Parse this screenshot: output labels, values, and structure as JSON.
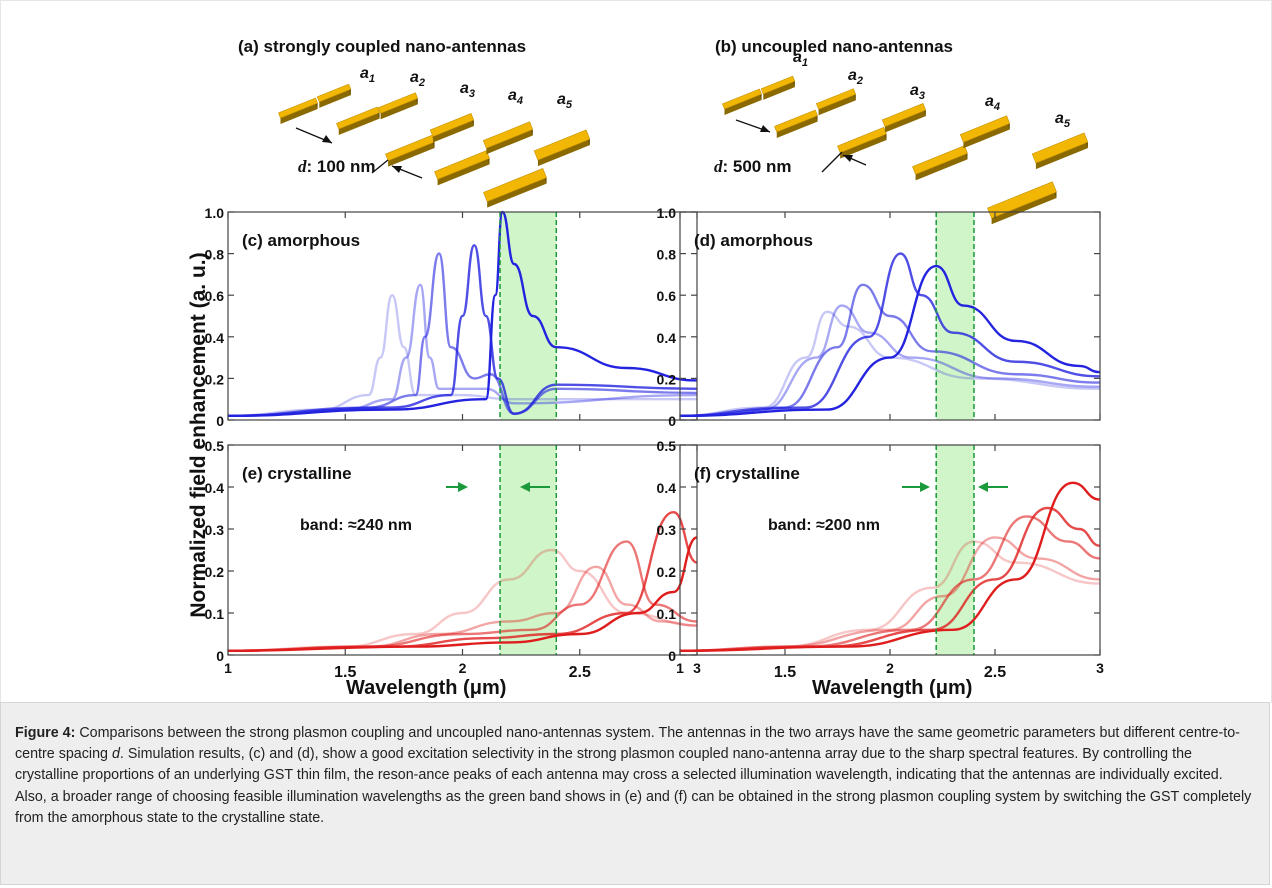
{
  "figure": {
    "panel_a_title": "(a) strongly coupled nano-antennas",
    "panel_b_title": "(b) uncoupled nano-antennas",
    "antenna_labels": [
      "a",
      "a",
      "a",
      "a",
      "a"
    ],
    "antenna_subscripts": [
      "1",
      "2",
      "3",
      "4",
      "5"
    ],
    "spacing_a": {
      "var": "d",
      "text": ": 100 nm"
    },
    "spacing_b": {
      "var": "d",
      "text": ": 500 nm"
    },
    "ylabel": "Normalized field enhancement (a. u.)",
    "xlabel": "Wavelength (μm)",
    "band_c": "band: ≈240 nm",
    "band_d": "band: ≈200 nm",
    "colors": {
      "amorphous": "#2323e0",
      "crystalline": "#e01d1d",
      "band": "#cff5c8",
      "band_line": "#1a9a3a",
      "antenna": "#f2b705"
    }
  },
  "chart_data": [
    {
      "type": "line",
      "title": "(c) amorphous",
      "xlabel": "Wavelength (μm)",
      "ylabel": "Normalized field enhancement (a. u.)",
      "xlim": [
        1,
        3
      ],
      "ylim": [
        0,
        1.0
      ],
      "xticks": [
        "1",
        "1.5",
        "2",
        "2.5",
        "3"
      ],
      "yticks": [
        "0",
        "0.2",
        "0.4",
        "0.6",
        "0.8",
        "1.0"
      ],
      "band": [
        2.16,
        2.4
      ],
      "series": [
        {
          "values": [
            [
              1,
              0.02
            ],
            [
              1.4,
              0.05
            ],
            [
              1.6,
              0.12
            ],
            [
              1.65,
              0.3
            ],
            [
              1.7,
              0.6
            ],
            [
              1.75,
              0.35
            ],
            [
              1.8,
              0.12
            ],
            [
              2.0,
              0.12
            ],
            [
              2.2,
              0.1
            ],
            [
              3,
              0.1
            ]
          ]
        },
        {
          "values": [
            [
              1,
              0.02
            ],
            [
              1.5,
              0.05
            ],
            [
              1.7,
              0.1
            ],
            [
              1.76,
              0.3
            ],
            [
              1.82,
              0.65
            ],
            [
              1.86,
              0.3
            ],
            [
              1.9,
              0.15
            ],
            [
              2.1,
              0.15
            ],
            [
              2.22,
              0.08
            ],
            [
              3,
              0.12
            ]
          ]
        },
        {
          "values": [
            [
              1,
              0.02
            ],
            [
              1.6,
              0.06
            ],
            [
              1.8,
              0.12
            ],
            [
              1.84,
              0.4
            ],
            [
              1.9,
              0.8
            ],
            [
              1.95,
              0.35
            ],
            [
              2.05,
              0.2
            ],
            [
              2.12,
              0.22
            ],
            [
              2.22,
              0.03
            ],
            [
              2.4,
              0.15
            ],
            [
              3,
              0.13
            ]
          ]
        },
        {
          "values": [
            [
              1,
              0.02
            ],
            [
              1.7,
              0.06
            ],
            [
              1.95,
              0.12
            ],
            [
              2.0,
              0.5
            ],
            [
              2.05,
              0.84
            ],
            [
              2.1,
              0.5
            ],
            [
              2.15,
              0.2
            ],
            [
              2.22,
              0.03
            ],
            [
              2.4,
              0.17
            ],
            [
              3,
              0.15
            ]
          ]
        },
        {
          "values": [
            [
              1,
              0.02
            ],
            [
              1.7,
              0.05
            ],
            [
              2.1,
              0.1
            ],
            [
              2.14,
              0.6
            ],
            [
              2.17,
              1.0
            ],
            [
              2.22,
              0.75
            ],
            [
              2.3,
              0.5
            ],
            [
              2.4,
              0.35
            ],
            [
              2.7,
              0.25
            ],
            [
              3,
              0.19
            ]
          ]
        }
      ]
    },
    {
      "type": "line",
      "title": "(d) amorphous",
      "xlim": [
        1,
        3
      ],
      "ylim": [
        0,
        1.0
      ],
      "xticks": [
        "1",
        "1.5",
        "2",
        "2.5",
        "3"
      ],
      "yticks": [
        "0",
        "0.2",
        "0.4",
        "0.6",
        "0.8",
        "1.0"
      ],
      "band": [
        2.22,
        2.4
      ],
      "series": [
        {
          "values": [
            [
              1,
              0.02
            ],
            [
              1.4,
              0.06
            ],
            [
              1.6,
              0.3
            ],
            [
              1.7,
              0.52
            ],
            [
              1.8,
              0.45
            ],
            [
              2.0,
              0.3
            ],
            [
              2.4,
              0.2
            ],
            [
              3,
              0.15
            ]
          ]
        },
        {
          "values": [
            [
              1,
              0.02
            ],
            [
              1.4,
              0.05
            ],
            [
              1.65,
              0.3
            ],
            [
              1.77,
              0.55
            ],
            [
              1.9,
              0.42
            ],
            [
              2.1,
              0.3
            ],
            [
              2.5,
              0.2
            ],
            [
              3,
              0.16
            ]
          ]
        },
        {
          "values": [
            [
              1,
              0.02
            ],
            [
              1.5,
              0.06
            ],
            [
              1.75,
              0.35
            ],
            [
              1.87,
              0.65
            ],
            [
              2.0,
              0.5
            ],
            [
              2.2,
              0.33
            ],
            [
              2.6,
              0.22
            ],
            [
              3,
              0.18
            ]
          ]
        },
        {
          "values": [
            [
              1,
              0.02
            ],
            [
              1.6,
              0.06
            ],
            [
              1.9,
              0.4
            ],
            [
              2.05,
              0.8
            ],
            [
              2.15,
              0.6
            ],
            [
              2.3,
              0.42
            ],
            [
              2.6,
              0.28
            ],
            [
              3,
              0.21
            ]
          ]
        },
        {
          "values": [
            [
              1,
              0.02
            ],
            [
              1.7,
              0.05
            ],
            [
              2.0,
              0.3
            ],
            [
              2.22,
              0.74
            ],
            [
              2.35,
              0.55
            ],
            [
              2.6,
              0.38
            ],
            [
              2.9,
              0.26
            ],
            [
              3,
              0.23
            ]
          ]
        }
      ]
    },
    {
      "type": "line",
      "title": "(e) crystalline",
      "xlim": [
        1,
        3
      ],
      "ylim": [
        0,
        0.5
      ],
      "xticks": [
        "1",
        "1.5",
        "2",
        "2.5",
        "3"
      ],
      "yticks": [
        "0",
        "0.1",
        "0.2",
        "0.3",
        "0.4",
        "0.5"
      ],
      "band": [
        2.16,
        2.4
      ],
      "series": [
        {
          "values": [
            [
              1,
              0.01
            ],
            [
              1.5,
              0.02
            ],
            [
              1.8,
              0.05
            ],
            [
              2.0,
              0.1
            ],
            [
              2.2,
              0.18
            ],
            [
              2.38,
              0.25
            ],
            [
              2.5,
              0.2
            ],
            [
              2.7,
              0.1
            ],
            [
              3,
              0.07
            ]
          ]
        },
        {
          "values": [
            [
              1,
              0.01
            ],
            [
              1.6,
              0.02
            ],
            [
              1.9,
              0.05
            ],
            [
              2.2,
              0.08
            ],
            [
              2.4,
              0.1
            ],
            [
              2.57,
              0.21
            ],
            [
              2.7,
              0.12
            ],
            [
              2.85,
              0.08
            ],
            [
              3,
              0.07
            ]
          ]
        },
        {
          "values": [
            [
              1,
              0.01
            ],
            [
              1.6,
              0.02
            ],
            [
              2.0,
              0.05
            ],
            [
              2.3,
              0.06
            ],
            [
              2.5,
              0.12
            ],
            [
              2.7,
              0.27
            ],
            [
              2.82,
              0.12
            ],
            [
              3,
              0.08
            ]
          ]
        },
        {
          "values": [
            [
              1,
              0.01
            ],
            [
              1.7,
              0.02
            ],
            [
              2.1,
              0.04
            ],
            [
              2.4,
              0.05
            ],
            [
              2.7,
              0.1
            ],
            [
              2.9,
              0.34
            ],
            [
              3,
              0.22
            ]
          ]
        },
        {
          "values": [
            [
              1,
              0.01
            ],
            [
              1.8,
              0.02
            ],
            [
              2.2,
              0.03
            ],
            [
              2.5,
              0.05
            ],
            [
              2.75,
              0.1
            ],
            [
              2.9,
              0.15
            ],
            [
              3,
              0.28
            ]
          ]
        }
      ]
    },
    {
      "type": "line",
      "title": "(f) crystalline",
      "xlim": [
        1,
        3
      ],
      "ylim": [
        0,
        0.5
      ],
      "xticks": [
        "1",
        "1.5",
        "2",
        "2.5",
        "3"
      ],
      "yticks": [
        "0",
        "0.1",
        "0.2",
        "0.3",
        "0.4",
        "0.5"
      ],
      "band": [
        2.22,
        2.4
      ],
      "series": [
        {
          "values": [
            [
              1,
              0.01
            ],
            [
              1.5,
              0.02
            ],
            [
              1.9,
              0.06
            ],
            [
              2.2,
              0.16
            ],
            [
              2.4,
              0.27
            ],
            [
              2.6,
              0.22
            ],
            [
              3,
              0.17
            ]
          ]
        },
        {
          "values": [
            [
              1,
              0.01
            ],
            [
              1.5,
              0.02
            ],
            [
              2.0,
              0.06
            ],
            [
              2.25,
              0.14
            ],
            [
              2.5,
              0.28
            ],
            [
              2.7,
              0.23
            ],
            [
              3,
              0.18
            ]
          ]
        },
        {
          "values": [
            [
              1,
              0.01
            ],
            [
              1.6,
              0.02
            ],
            [
              2.1,
              0.06
            ],
            [
              2.4,
              0.18
            ],
            [
              2.65,
              0.33
            ],
            [
              2.85,
              0.27
            ],
            [
              3,
              0.23
            ]
          ]
        },
        {
          "values": [
            [
              1,
              0.01
            ],
            [
              1.7,
              0.02
            ],
            [
              2.2,
              0.06
            ],
            [
              2.5,
              0.18
            ],
            [
              2.75,
              0.35
            ],
            [
              2.9,
              0.3
            ],
            [
              3,
              0.26
            ]
          ]
        },
        {
          "values": [
            [
              1,
              0.01
            ],
            [
              1.8,
              0.02
            ],
            [
              2.3,
              0.06
            ],
            [
              2.6,
              0.18
            ],
            [
              2.87,
              0.41
            ],
            [
              3,
              0.37
            ]
          ]
        }
      ]
    }
  ],
  "caption": {
    "label": "Figure 4:",
    "part1": " Comparisons between the strong plasmon coupling and uncoupled nano-antennas system. The antennas in the two arrays have the same geometric parameters but different centre-to-centre spacing ",
    "italic": "d",
    "part2": ". Simulation results, (c) and (d), show a good excitation selectivity in the strong plasmon coupled nano-antenna array due to the sharp spectral features. By controlling the crystalline proportions of an underlying GST thin film, the reson-ance peaks of each antenna may cross a selected illumination wavelength, indicating that the antennas are individually excited. Also, a broader range of choosing feasible illumination wavelengths as the green band shows in (e) and (f) can be obtained in the strong plasmon coupling system by switching the GST completely from the amorphous state to the crystalline state."
  }
}
